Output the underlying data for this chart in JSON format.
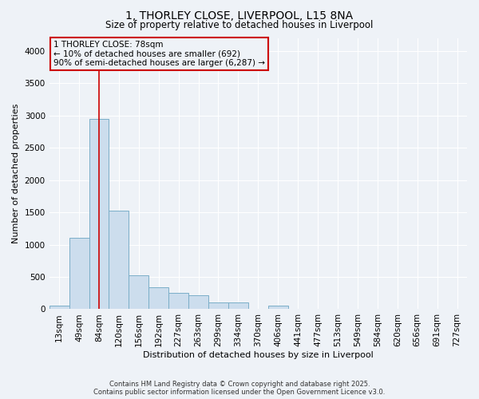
{
  "title": "1, THORLEY CLOSE, LIVERPOOL, L15 8NA",
  "subtitle": "Size of property relative to detached houses in Liverpool",
  "xlabel": "Distribution of detached houses by size in Liverpool",
  "ylabel": "Number of detached properties",
  "categories": [
    "13sqm",
    "49sqm",
    "84sqm",
    "120sqm",
    "156sqm",
    "192sqm",
    "227sqm",
    "263sqm",
    "299sqm",
    "334sqm",
    "370sqm",
    "406sqm",
    "441sqm",
    "477sqm",
    "513sqm",
    "549sqm",
    "584sqm",
    "620sqm",
    "656sqm",
    "691sqm",
    "727sqm"
  ],
  "values": [
    55,
    1100,
    2950,
    1530,
    520,
    340,
    250,
    210,
    100,
    100,
    0,
    50,
    0,
    0,
    0,
    0,
    0,
    0,
    0,
    0,
    0
  ],
  "bar_color": "#ccdded",
  "bar_edge_color": "#7aaec8",
  "vline_color": "#cc0000",
  "vline_x_index": 2,
  "annotation_line1": "1 THORLEY CLOSE: 78sqm",
  "annotation_line2": "← 10% of detached houses are smaller (692)",
  "annotation_line3": "90% of semi-detached houses are larger (6,287) →",
  "annotation_box_edge_color": "#cc0000",
  "ylim": [
    0,
    4200
  ],
  "yticks": [
    0,
    500,
    1000,
    1500,
    2000,
    2500,
    3000,
    3500,
    4000
  ],
  "background_color": "#eef2f7",
  "grid_color": "#ffffff",
  "footer_line1": "Contains HM Land Registry data © Crown copyright and database right 2025.",
  "footer_line2": "Contains public sector information licensed under the Open Government Licence v3.0.",
  "title_fontsize": 10,
  "subtitle_fontsize": 8.5,
  "axis_label_fontsize": 8,
  "tick_fontsize": 7.5,
  "footer_fontsize": 6,
  "annotation_fontsize": 7.5
}
